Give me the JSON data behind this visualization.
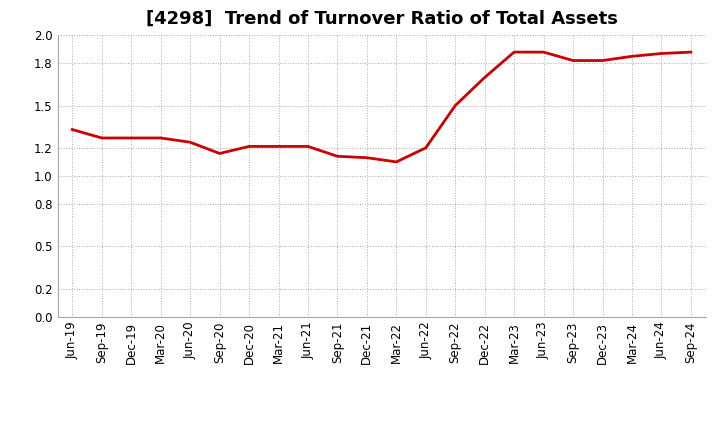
{
  "title": "[4298]  Trend of Turnover Ratio of Total Assets",
  "x_labels": [
    "Jun-19",
    "Sep-19",
    "Dec-19",
    "Mar-20",
    "Jun-20",
    "Sep-20",
    "Dec-20",
    "Mar-21",
    "Jun-21",
    "Sep-21",
    "Dec-21",
    "Mar-22",
    "Jun-22",
    "Sep-22",
    "Dec-22",
    "Mar-23",
    "Jun-23",
    "Sep-23",
    "Dec-23",
    "Mar-24",
    "Jun-24",
    "Sep-24"
  ],
  "y_values": [
    1.33,
    1.27,
    1.27,
    1.27,
    1.24,
    1.16,
    1.21,
    1.21,
    1.21,
    1.14,
    1.13,
    1.1,
    1.2,
    1.5,
    1.7,
    1.88,
    1.88,
    1.82,
    1.82,
    1.85,
    1.87,
    1.88
  ],
  "line_color": "#cc0000",
  "line_width": 2.0,
  "ylim": [
    0.0,
    2.0
  ],
  "yticks": [
    0.0,
    0.2,
    0.5,
    0.8,
    1.0,
    1.2,
    1.5,
    1.8,
    2.0
  ],
  "grid_color": "#aaaaaa",
  "bg_color": "#ffffff",
  "title_fontsize": 13,
  "tick_fontsize": 8.5
}
